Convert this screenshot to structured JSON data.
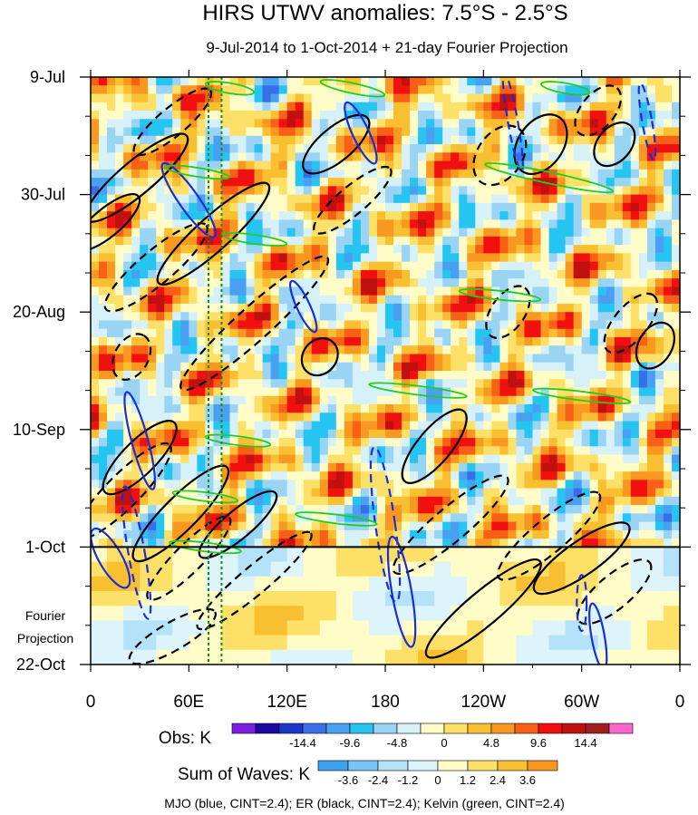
{
  "chart_data": {
    "type": "heatmap",
    "title": "HIRS UTWV anomalies: 7.5°S - 2.5°S",
    "subtitle": "9-Jul-2014 to 1-Oct-2014 + 21-day Fourier Projection",
    "x_ticks": [
      {
        "label": "0",
        "lon": 0
      },
      {
        "label": "60E",
        "lon": 60
      },
      {
        "label": "120E",
        "lon": 120
      },
      {
        "label": "180",
        "lon": 180
      },
      {
        "label": "120W",
        "lon": 240
      },
      {
        "label": "60W",
        "lon": 300
      },
      {
        "label": "0",
        "lon": 360
      }
    ],
    "xlim": [
      0,
      360
    ],
    "y_ticks": [
      {
        "label": "9-Jul",
        "day": 0
      },
      {
        "label": "30-Jul",
        "day": 21
      },
      {
        "label": "20-Aug",
        "day": 42
      },
      {
        "label": "10-Sep",
        "day": 63
      },
      {
        "label": "1-Oct",
        "day": 84
      },
      {
        "label": "22-Oct",
        "day": 105
      }
    ],
    "ylim_days": [
      0,
      105
    ],
    "projection_start_day": 84,
    "projection_label_line1": "Fourier",
    "projection_label_line2": "Projection",
    "reference_lines_lon": [
      72,
      80
    ],
    "obs_colorbar": {
      "label": "Obs: K",
      "colors": [
        "#7b1fe0",
        "#1a0aa0",
        "#1c38c8",
        "#3a6ee8",
        "#4aa0f0",
        "#26c4f0",
        "#9ad4f4",
        "#d6f2f8",
        "#fffcc8",
        "#fce068",
        "#f8c030",
        "#f89820",
        "#f86018",
        "#f01010",
        "#c01010",
        "#a02020",
        "#ff66cc"
      ],
      "tick_labels": [
        "-14.4",
        "-9.6",
        "-4.8",
        "0",
        "4.8",
        "9.6",
        "14.4"
      ]
    },
    "waves_colorbar": {
      "label": "Sum of Waves: K",
      "colors": [
        "#3aa4f0",
        "#78c4f4",
        "#b4e2f8",
        "#dcf4fa",
        "#fffcc8",
        "#fce068",
        "#f8c030",
        "#f89820"
      ],
      "tick_labels": [
        "-3.6",
        "-2.4",
        "-1.2",
        "0",
        "1.2",
        "2.4",
        "3.6"
      ]
    },
    "series": [
      {
        "name": "MJO",
        "color": "#1a2ed8",
        "cint": 2.4
      },
      {
        "name": "ER",
        "color": "#000000",
        "cint": 2.4
      },
      {
        "name": "Kelvin",
        "color": "#22cc22",
        "cint": 2.4
      }
    ],
    "footer": "MJO (blue, CINT=2.4); ER (black, CINT=2.4); Kelvin (green, CINT=2.4)"
  }
}
